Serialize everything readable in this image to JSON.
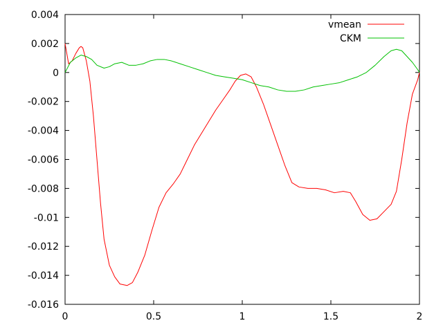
{
  "chart_data": {
    "type": "line",
    "title": "",
    "xlabel": "",
    "ylabel": "",
    "xlim": [
      0,
      2
    ],
    "ylim": [
      -0.016,
      0.004
    ],
    "x_ticks": [
      {
        "value": 0,
        "label": "0"
      },
      {
        "value": 0.5,
        "label": "0.5"
      },
      {
        "value": 1,
        "label": "1"
      },
      {
        "value": 1.5,
        "label": "1.5"
      },
      {
        "value": 2,
        "label": "2"
      }
    ],
    "y_ticks": [
      {
        "value": 0.004,
        "label": "0.004"
      },
      {
        "value": 0.002,
        "label": "0.002"
      },
      {
        "value": 0,
        "label": "0"
      },
      {
        "value": -0.002,
        "label": "-0.002"
      },
      {
        "value": -0.004,
        "label": "-0.004"
      },
      {
        "value": -0.006,
        "label": "-0.006"
      },
      {
        "value": -0.008,
        "label": "-0.008"
      },
      {
        "value": -0.01,
        "label": "-0.01"
      },
      {
        "value": -0.012,
        "label": "-0.012"
      },
      {
        "value": -0.014,
        "label": "-0.014"
      },
      {
        "value": -0.016,
        "label": "-0.016"
      }
    ],
    "grid": false,
    "legend_position": "top-right",
    "series": [
      {
        "name": "vmean",
        "color": "#ff0000",
        "points": [
          [
            0.0,
            0.002
          ],
          [
            0.01,
            0.0013
          ],
          [
            0.02,
            0.0006
          ],
          [
            0.04,
            0.0008
          ],
          [
            0.06,
            0.0013
          ],
          [
            0.08,
            0.0017
          ],
          [
            0.09,
            0.0018
          ],
          [
            0.1,
            0.0017
          ],
          [
            0.12,
            0.0008
          ],
          [
            0.14,
            -0.0006
          ],
          [
            0.16,
            -0.003
          ],
          [
            0.18,
            -0.006
          ],
          [
            0.2,
            -0.009
          ],
          [
            0.22,
            -0.0115
          ],
          [
            0.25,
            -0.0133
          ],
          [
            0.28,
            -0.0141
          ],
          [
            0.31,
            -0.0146
          ],
          [
            0.35,
            -0.0147
          ],
          [
            0.38,
            -0.0145
          ],
          [
            0.41,
            -0.0138
          ],
          [
            0.45,
            -0.0126
          ],
          [
            0.49,
            -0.0109
          ],
          [
            0.53,
            -0.0093
          ],
          [
            0.57,
            -0.0083
          ],
          [
            0.61,
            -0.0077
          ],
          [
            0.65,
            -0.007
          ],
          [
            0.69,
            -0.006
          ],
          [
            0.73,
            -0.005
          ],
          [
            0.77,
            -0.0042
          ],
          [
            0.81,
            -0.0034
          ],
          [
            0.85,
            -0.0026
          ],
          [
            0.89,
            -0.0019
          ],
          [
            0.93,
            -0.0012
          ],
          [
            0.96,
            -0.0006
          ],
          [
            0.99,
            -0.0002
          ],
          [
            1.02,
            -0.0001
          ],
          [
            1.05,
            -0.0003
          ],
          [
            1.08,
            -0.001
          ],
          [
            1.12,
            -0.0022
          ],
          [
            1.16,
            -0.0036
          ],
          [
            1.2,
            -0.005
          ],
          [
            1.24,
            -0.0064
          ],
          [
            1.28,
            -0.0076
          ],
          [
            1.32,
            -0.0079
          ],
          [
            1.37,
            -0.008
          ],
          [
            1.42,
            -0.008
          ],
          [
            1.47,
            -0.0081
          ],
          [
            1.52,
            -0.0083
          ],
          [
            1.57,
            -0.0082
          ],
          [
            1.61,
            -0.0083
          ],
          [
            1.64,
            -0.0089
          ],
          [
            1.68,
            -0.0098
          ],
          [
            1.72,
            -0.0102
          ],
          [
            1.76,
            -0.0101
          ],
          [
            1.8,
            -0.0096
          ],
          [
            1.84,
            -0.0091
          ],
          [
            1.87,
            -0.0082
          ],
          [
            1.9,
            -0.006
          ],
          [
            1.93,
            -0.0035
          ],
          [
            1.96,
            -0.0015
          ],
          [
            1.99,
            -0.0005
          ],
          [
            2.0,
            0.0
          ]
        ]
      },
      {
        "name": "CKM",
        "color": "#00c000",
        "points": [
          [
            0.0,
            0.0
          ],
          [
            0.03,
            0.0007
          ],
          [
            0.06,
            0.001
          ],
          [
            0.09,
            0.0012
          ],
          [
            0.12,
            0.0011
          ],
          [
            0.15,
            0.0009
          ],
          [
            0.18,
            0.0005
          ],
          [
            0.22,
            0.0003
          ],
          [
            0.25,
            0.0004
          ],
          [
            0.28,
            0.0006
          ],
          [
            0.32,
            0.0007
          ],
          [
            0.36,
            0.0005
          ],
          [
            0.4,
            0.0005
          ],
          [
            0.44,
            0.0006
          ],
          [
            0.48,
            0.0008
          ],
          [
            0.52,
            0.0009
          ],
          [
            0.56,
            0.0009
          ],
          [
            0.6,
            0.0008
          ],
          [
            0.65,
            0.0006
          ],
          [
            0.7,
            0.0004
          ],
          [
            0.75,
            0.0002
          ],
          [
            0.8,
            0.0
          ],
          [
            0.85,
            -0.0002
          ],
          [
            0.9,
            -0.0003
          ],
          [
            0.95,
            -0.0004
          ],
          [
            1.0,
            -0.0005
          ],
          [
            1.05,
            -0.0007
          ],
          [
            1.1,
            -0.0009
          ],
          [
            1.15,
            -0.001
          ],
          [
            1.2,
            -0.0012
          ],
          [
            1.25,
            -0.0013
          ],
          [
            1.3,
            -0.0013
          ],
          [
            1.35,
            -0.0012
          ],
          [
            1.4,
            -0.001
          ],
          [
            1.45,
            -0.0009
          ],
          [
            1.5,
            -0.0008
          ],
          [
            1.55,
            -0.0007
          ],
          [
            1.6,
            -0.0005
          ],
          [
            1.65,
            -0.0003
          ],
          [
            1.7,
            0.0
          ],
          [
            1.75,
            0.0005
          ],
          [
            1.8,
            0.0011
          ],
          [
            1.84,
            0.0015
          ],
          [
            1.87,
            0.0016
          ],
          [
            1.9,
            0.0015
          ],
          [
            1.93,
            0.0011
          ],
          [
            1.96,
            0.0007
          ],
          [
            1.99,
            0.0002
          ],
          [
            2.0,
            0.0
          ]
        ]
      }
    ]
  }
}
